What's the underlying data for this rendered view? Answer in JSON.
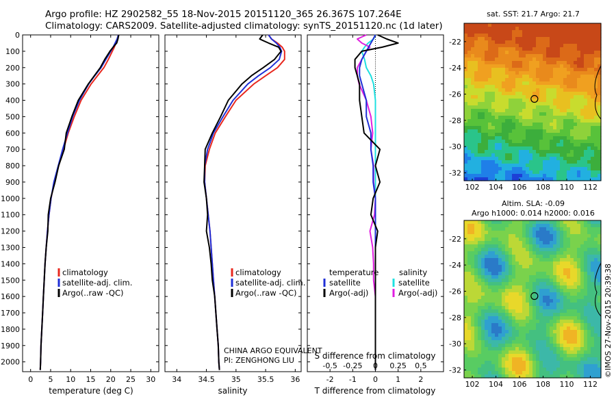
{
  "header": {
    "line1": "Argo profile: HZ 2902582_55 18-Nov-2015 20151120_365 26.367S 107.264E",
    "line2": "Climatology: CARS2009. Satellite-adjusted climatology: synTS_20151120.nc (1d later)"
  },
  "colors": {
    "clim": "#e8281e",
    "sat": "#1f2fd6",
    "argo": "#000000",
    "sat_sal": "#1ee0e0",
    "argo_sal": "#e01ee0"
  },
  "depth_axis": {
    "ticks": [
      "0",
      "100",
      "200",
      "300",
      "400",
      "500",
      "600",
      "700",
      "800",
      "900",
      "1000",
      "1100",
      "1200",
      "1300",
      "1400",
      "1500",
      "1600",
      "1700",
      "1800",
      "1900",
      "2000"
    ],
    "range": [
      0,
      2060
    ]
  },
  "panel_temp": {
    "xlabel": "temperature (deg C)",
    "xticks": [
      "0",
      "5",
      "10",
      "15",
      "20",
      "25",
      "30"
    ],
    "xrange": [
      -2,
      32
    ],
    "legend": [
      "climatology",
      "satellite-adj. clim.",
      "Argo(..raw -QC)"
    ]
  },
  "panel_sal": {
    "xlabel": "salinity",
    "xticks": [
      "34",
      "34.5",
      "35",
      "35.5",
      "36"
    ],
    "xrange": [
      33.8,
      36.1
    ],
    "legend": [
      "climatology",
      "satellite-adj. clim.",
      "Argo(..raw -QC)"
    ],
    "note1": "CHINA ARGO EQUIVALENT",
    "note2": "PI: ZENGHONG LIU"
  },
  "panel_diff": {
    "xlabel": "T difference from climatology",
    "xlabel_top": "S difference from climatology",
    "xticks_t": [
      "-2",
      "-1",
      "0",
      "1",
      "2"
    ],
    "xticks_s": [
      "-0.5",
      "-0.25",
      "0",
      "0.25",
      "0.5"
    ],
    "xrange": [
      -3,
      3
    ],
    "legend_t_title": "temperature",
    "legend_t": [
      "satellite",
      "Argo(-adj)"
    ],
    "legend_s_title": "salinity",
    "legend_s": [
      "satellite",
      "Argo(-adj)"
    ]
  },
  "map_sst": {
    "title": "sat. SST: 21.7  Argo: 21.7",
    "yticks": [
      "-22",
      "-24",
      "-26",
      "-28",
      "-30",
      "-32"
    ],
    "xticks": [
      "102",
      "104",
      "106",
      "108",
      "110",
      "112"
    ],
    "lon": [
      101.3,
      112.9
    ],
    "lat": [
      -32.6,
      -20.6
    ]
  },
  "map_sla": {
    "title1": "Altim. SLA: -0.09",
    "title2": "Argo h1000: 0.014  h2000: 0.016",
    "yticks": [
      "-22",
      "-24",
      "-26",
      "-28",
      "-30",
      "-32"
    ],
    "xticks": [
      "102",
      "104",
      "106",
      "108",
      "110",
      "112"
    ],
    "lon": [
      101.3,
      112.9
    ],
    "lat": [
      -32.6,
      -20.6
    ]
  },
  "float_position": {
    "lon": 107.264,
    "lat": -26.367
  },
  "credit": "©IMOS 27-Nov-2015 20:39:38",
  "chart_data": {
    "type": "line",
    "depth": [
      0,
      25,
      50,
      75,
      100,
      150,
      200,
      250,
      300,
      400,
      500,
      600,
      700,
      800,
      900,
      1000,
      1100,
      1200,
      1300,
      1400,
      1500,
      1600,
      1700,
      1800,
      1900,
      2000,
      2050
    ],
    "temperature": {
      "series": [
        {
          "name": "climatology",
          "values": [
            21.9,
            21.7,
            21.3,
            20.9,
            20.4,
            19.4,
            18.3,
            16.7,
            15.1,
            12.6,
            10.9,
            9.4,
            8.2,
            7.0,
            5.9,
            5.1,
            4.6,
            4.2,
            3.9,
            3.6,
            3.4,
            3.2,
            3.0,
            2.8,
            2.6,
            2.5,
            2.4
          ]
        },
        {
          "name": "satellite-adj. clim.",
          "values": [
            21.9,
            21.6,
            21.1,
            20.6,
            20.0,
            18.8,
            17.6,
            16.0,
            14.5,
            12.2,
            10.5,
            9.2,
            8.0,
            6.9,
            5.8,
            5.1,
            4.6,
            4.2,
            3.9,
            3.6,
            3.4,
            3.2,
            3.0,
            2.8,
            2.6,
            2.5,
            2.4
          ]
        },
        {
          "name": "Argo(..raw -QC)",
          "values": [
            22.0,
            21.8,
            21.5,
            20.6,
            19.8,
            18.5,
            17.4,
            15.9,
            14.4,
            11.9,
            10.3,
            8.9,
            8.4,
            7.0,
            6.1,
            5.0,
            4.4,
            4.3,
            3.9,
            3.6,
            3.4,
            3.2,
            3.0,
            2.8,
            2.6,
            2.5,
            2.4
          ]
        }
      ]
    },
    "salinity": {
      "series": [
        {
          "name": "climatology",
          "values": [
            35.55,
            35.6,
            35.7,
            35.78,
            35.82,
            35.82,
            35.7,
            35.5,
            35.3,
            35.0,
            34.82,
            34.65,
            34.55,
            34.48,
            34.47,
            34.5,
            34.53,
            34.56,
            34.58,
            34.6,
            34.62,
            34.64,
            34.66,
            34.68,
            34.7,
            34.71,
            34.72
          ]
        },
        {
          "name": "satellite-adj. clim.",
          "values": [
            35.55,
            35.6,
            35.68,
            35.74,
            35.77,
            35.73,
            35.58,
            35.38,
            35.2,
            34.95,
            34.78,
            34.62,
            34.52,
            34.47,
            34.47,
            34.5,
            34.53,
            34.56,
            34.58,
            34.6,
            34.62,
            34.64,
            34.66,
            34.68,
            34.7,
            34.71,
            34.72
          ]
        },
        {
          "name": "Argo(..raw -QC)",
          "values": [
            35.45,
            35.4,
            35.55,
            35.72,
            35.76,
            35.65,
            35.46,
            35.26,
            35.1,
            34.87,
            34.74,
            34.6,
            34.48,
            34.47,
            34.46,
            34.5,
            34.52,
            34.5,
            34.55,
            34.58,
            34.6,
            34.64,
            34.66,
            34.68,
            34.7,
            34.71,
            34.72
          ]
        }
      ]
    },
    "differences": {
      "series": [
        {
          "name": "temperature satellite",
          "values": [
            0,
            -0.1,
            -0.2,
            -0.3,
            -0.4,
            -0.6,
            -0.7,
            -0.7,
            -0.6,
            -0.4,
            -0.4,
            -0.2,
            -0.2,
            -0.1,
            -0.1,
            0,
            0,
            0,
            0,
            0,
            0,
            0,
            0,
            0,
            0,
            0,
            0
          ]
        },
        {
          "name": "temperature Argo(-adj)",
          "values": [
            0.1,
            0.5,
            1.0,
            0.3,
            -0.6,
            -0.9,
            -0.9,
            -0.8,
            -0.7,
            -0.7,
            -0.6,
            -0.5,
            0.2,
            0,
            0.2,
            -0.1,
            -0.2,
            0.1,
            0,
            0,
            0,
            0,
            0,
            0,
            0,
            0,
            0
          ]
        },
        {
          "name": "salinity satellite",
          "values": [
            0,
            -0.02,
            -0.08,
            -0.12,
            -0.15,
            -0.12,
            -0.1,
            -0.05,
            -0.02,
            0,
            0,
            0,
            0,
            0,
            0,
            0,
            0,
            0,
            0,
            0,
            0,
            0,
            0,
            0,
            0,
            0,
            0
          ]
        },
        {
          "name": "salinity Argo(-adj)",
          "values": [
            -0.1,
            -0.2,
            -0.15,
            -0.06,
            -0.1,
            -0.15,
            -0.2,
            -0.2,
            -0.18,
            -0.1,
            -0.05,
            -0.03,
            -0.05,
            -0.02,
            -0.02,
            0,
            -0.01,
            -0.06,
            -0.03,
            -0.02,
            -0.02,
            0,
            0,
            0,
            0,
            0,
            0
          ]
        }
      ]
    }
  }
}
